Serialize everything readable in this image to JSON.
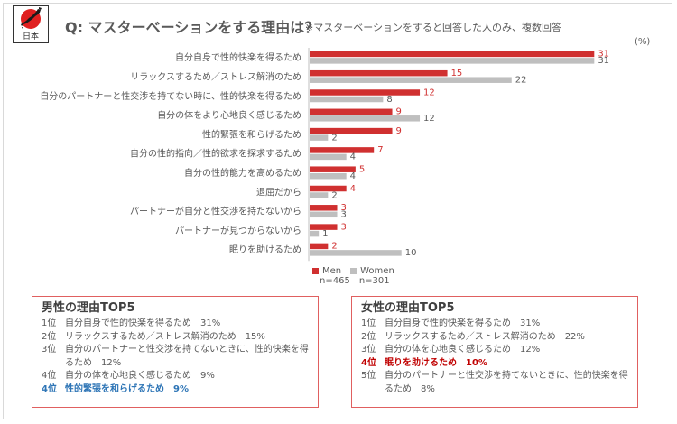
{
  "header": {
    "flag_label": "日本",
    "title": "Q: マスターベーションをする理由は？",
    "subtitle": "※マスターベーションをすると回答した人のみ、複数回答"
  },
  "chart_data": {
    "type": "bar",
    "orientation": "horizontal",
    "unit": "(%)",
    "xlim": [
      0,
      35
    ],
    "categories": [
      "自分自身で性的快楽を得るため",
      "リラックスするため／ストレス解消のため",
      "自分のパートナーと性交渉を持てない時に、性的快楽を得るため",
      "自分の体をより心地良く感じるため",
      "性的緊張を和らげるため",
      "自分の性的指向／性的欲求を探求するため",
      "自分の性的能力を高めるため",
      "退屈だから",
      "パートナーが自分と性交渉を持たないから",
      "パートナーが見つからないから",
      "眠りを助けるため"
    ],
    "series": [
      {
        "name": "Men",
        "n": "n=465",
        "color": "#d03030",
        "values": [
          31,
          15,
          12,
          9,
          9,
          7,
          5,
          4,
          3,
          3,
          2
        ]
      },
      {
        "name": "Women",
        "n": "n=301",
        "color": "#bfbfbf",
        "values": [
          31,
          22,
          8,
          12,
          2,
          4,
          4,
          2,
          3,
          1,
          10
        ]
      }
    ]
  },
  "men_box": {
    "title": "男性の理由TOP5",
    "items": [
      {
        "rank": "1位",
        "text": "自分自身で性的快楽を得るため　31%"
      },
      {
        "rank": "2位",
        "text": "リラックスするため／ストレス解消のため　15%"
      },
      {
        "rank": "3位",
        "text": "自分のパートナーと性交渉を持てないときに、性的快楽を得るため　12%"
      },
      {
        "rank": "4位",
        "text": "自分の体を心地良く感じるため　9%"
      },
      {
        "rank": "4位",
        "text": "性的緊張を和らげるため　9%"
      }
    ]
  },
  "women_box": {
    "title": "女性の理由TOP5",
    "items": [
      {
        "rank": "1位",
        "text": "自分自身で性的快楽を得るため　31%"
      },
      {
        "rank": "2位",
        "text": "リラックスするため／ストレス解消のため　22%"
      },
      {
        "rank": "3位",
        "text": "自分の体を心地良く感じるため　12%"
      },
      {
        "rank": "4位",
        "text": "眠りを助けるため　10%"
      },
      {
        "rank": "5位",
        "text": "自分のパートナーと性交渉を持てないときに、性的快楽を得るため　8%"
      }
    ]
  }
}
